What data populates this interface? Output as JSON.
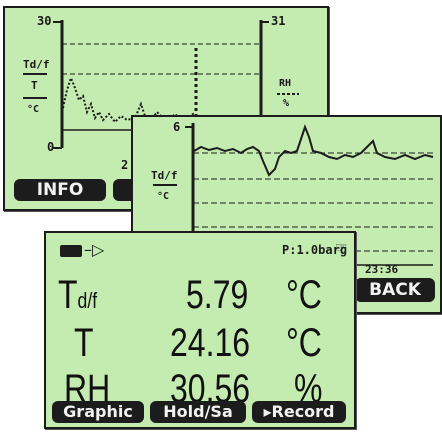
{
  "screen1": {
    "y_top_left": "30",
    "y_bottom_left": "0",
    "y_top_right": "31",
    "axis_label_top": "Td/f",
    "axis_label_mid": "T",
    "axis_label_unit": "°C",
    "right_label": "RH",
    "right_unit": "%",
    "x_tick": "2",
    "info_button": "INFO"
  },
  "screen2": {
    "y_top": "6",
    "axis_label_top": "Td/f",
    "axis_label_unit": "°C",
    "time": "23:36",
    "back_button": "BACK"
  },
  "screen3": {
    "pressure": "P:1.0barɡ",
    "rows": [
      {
        "label": "T",
        "sub": "d/f",
        "value": "5.79",
        "unit": "°C"
      },
      {
        "label": "T",
        "sub": "",
        "value": "24.16",
        "unit": "°C"
      },
      {
        "label": "RH",
        "sub": "",
        "value": "30.56",
        "unit": "%"
      }
    ],
    "buttons": {
      "graphic": "Graphic",
      "hold": "Hold/Sa",
      "record": "▸Record"
    }
  },
  "colors": {
    "lcd_background": "#c4ebb0",
    "lcd_ink": "#1c1c1c"
  }
}
